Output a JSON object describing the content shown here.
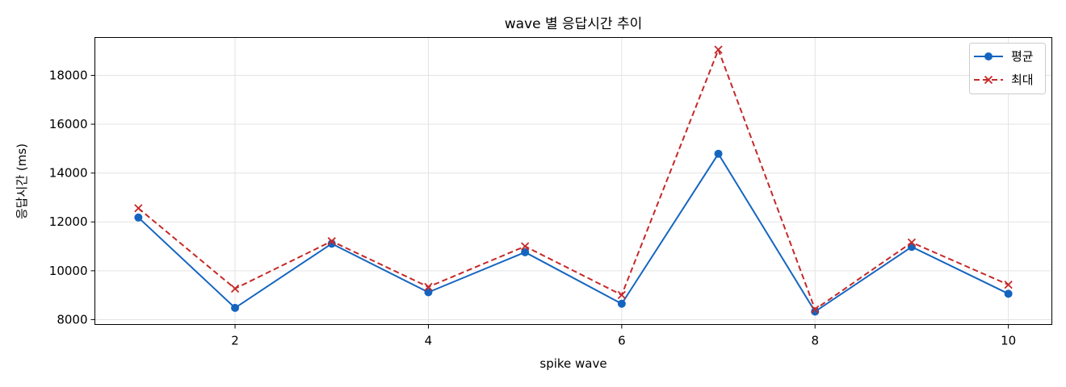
{
  "chart_data": {
    "type": "line",
    "title": "wave 별 응답시간 추이",
    "xlabel": "spike wave",
    "ylabel": "응답시간 (ms)",
    "x": [
      1,
      2,
      3,
      4,
      5,
      6,
      7,
      8,
      9,
      10
    ],
    "xlim": [
      0.55,
      10.45
    ],
    "ylim": [
      7800,
      19550
    ],
    "xticks": [
      2,
      4,
      6,
      8,
      10
    ],
    "yticks": [
      8000,
      10000,
      12000,
      14000,
      16000,
      18000
    ],
    "grid": true,
    "legend_position": "top-right",
    "series": [
      {
        "name": "평균",
        "color": "#1565c0",
        "line_style": "solid",
        "marker": "circle",
        "values": [
          12180,
          8480,
          11110,
          9120,
          10760,
          8650,
          14790,
          8330,
          10980,
          9060
        ]
      },
      {
        "name": "최대",
        "color": "#c62828",
        "line_style": "dashed",
        "marker": "x",
        "values": [
          12560,
          9270,
          11210,
          9340,
          11000,
          9010,
          19050,
          8420,
          11160,
          9430
        ]
      }
    ]
  }
}
